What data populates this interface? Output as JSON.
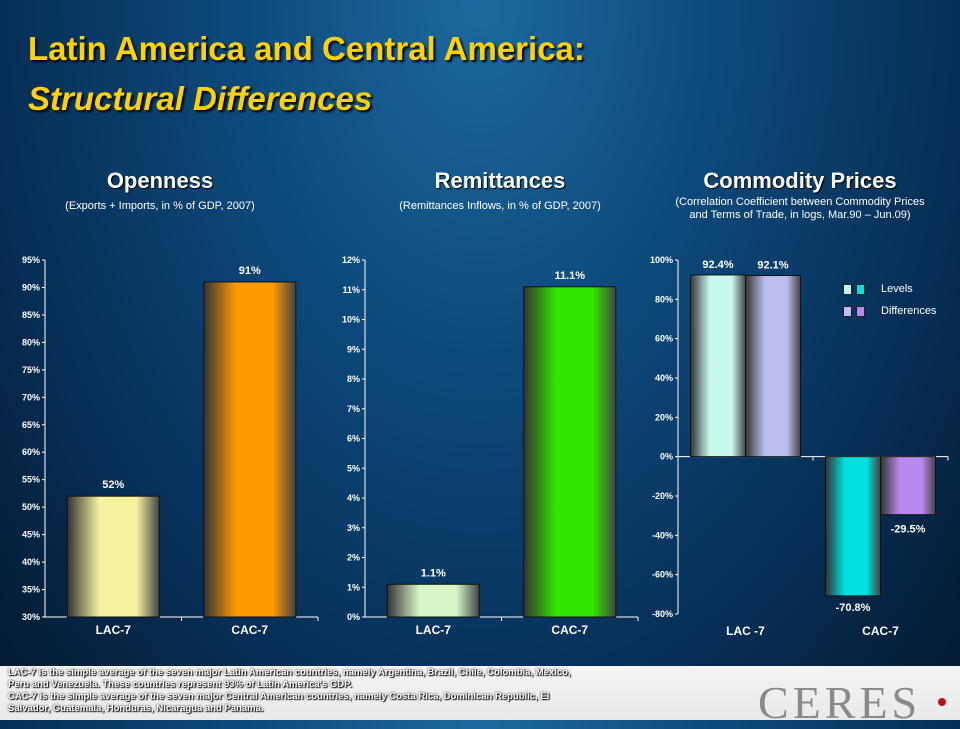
{
  "header": {
    "title_line1": "Latin America and Central America:",
    "title_line2": "Structural Differences"
  },
  "chart_data": [
    {
      "type": "bar",
      "title": "Openness",
      "subtitle": "(Exports + Imports, in % of GDP, 2007)",
      "categories": [
        "LAC-7",
        "CAC-7"
      ],
      "values": [
        52,
        91
      ],
      "data_labels": [
        "52%",
        "91%"
      ],
      "ylim": [
        30,
        95
      ],
      "yticks": [
        "30%",
        "35%",
        "40%",
        "45%",
        "50%",
        "55%",
        "60%",
        "65%",
        "70%",
        "75%",
        "80%",
        "85%",
        "90%",
        "95%"
      ],
      "colors": [
        "#f5f2a0",
        "#ff9a00"
      ]
    },
    {
      "type": "bar",
      "title": "Remittances",
      "subtitle": "(Remittances Inflows, in % of GDP, 2007)",
      "categories": [
        "LAC-7",
        "CAC-7"
      ],
      "values": [
        1.1,
        11.1
      ],
      "data_labels": [
        "1.1%",
        "11.1%"
      ],
      "ylim": [
        0,
        12
      ],
      "yticks": [
        "0%",
        "1%",
        "2%",
        "3%",
        "4%",
        "5%",
        "6%",
        "7%",
        "8%",
        "9%",
        "10%",
        "11%",
        "12%"
      ],
      "colors": [
        "#d8f5c8",
        "#33e600"
      ]
    },
    {
      "type": "bar",
      "title": "Commodity Prices",
      "subtitle_line1": "(Correlation Coefficient between Commodity Prices",
      "subtitle_line2": "and Terms of Trade, in logs, Mar.90 – Jun.09)",
      "categories": [
        "LAC -7",
        "CAC-7"
      ],
      "series": [
        {
          "name": "Levels",
          "values": [
            92.4,
            -70.8
          ],
          "labels": [
            "92.4%",
            "-70.8%"
          ]
        },
        {
          "name": "Differences",
          "values": [
            92.1,
            -29.5
          ],
          "labels": [
            "92.1%",
            "-29.5%"
          ]
        }
      ],
      "ylim": [
        -80,
        100
      ],
      "yticks": [
        "-80%",
        "-60%",
        "-40%",
        "-20%",
        "0%",
        "20%",
        "40%",
        "60%",
        "80%",
        "100%"
      ],
      "colors": [
        "#c8f8f0",
        "#bdbdf0",
        "#00e0e0",
        "#b88af0"
      ],
      "legend": "top-right"
    }
  ],
  "footnote": {
    "line1": "LAC-7 is the simple average of the seven major Latin American countries, namely Argentina, Brazil, Chile, Colombia, Mexico,",
    "line2": "Peru and Venezuela. These countries represent 93% of Latin America's GDP.",
    "line3": "CAC-7 is the simple average of the seven major Central American countries, namely Costa Rica, Dominican Republic, El",
    "line4": "Salvador, Guatemala, Honduras, Nicaragua and Panama."
  },
  "logo": {
    "text": "CERES"
  }
}
